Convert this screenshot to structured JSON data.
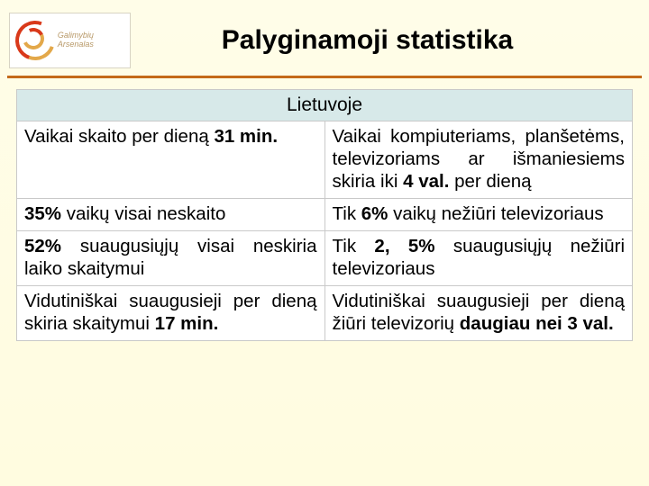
{
  "logo": {
    "text": "Galimybių Arsenalas"
  },
  "title": "Palyginamoji statistika",
  "table": {
    "header": "Lietuvoje",
    "rows": [
      {
        "left_parts": [
          "Vaikai skaito per dieną ",
          "31 min."
        ],
        "right_parts": [
          "Vaikai kompiuteriams, planšetėms, televizoriams ar išmaniesiems skiria iki ",
          "4 val.",
          " per dieną"
        ]
      },
      {
        "left_parts": [
          "35%",
          " vaikų visai neskaito"
        ],
        "right_parts": [
          "Tik ",
          "6%",
          " vaikų nežiūri televizoriaus"
        ]
      },
      {
        "left_parts": [
          "52%",
          " suaugusiųjų visai neskiria laiko skaitymui"
        ],
        "right_parts": [
          "Tik ",
          "2, 5%",
          " suaugusiųjų nežiūri televizoriaus"
        ]
      },
      {
        "left_parts": [
          "Vidutiniškai suaugusieji per dieną skiria skaitymui ",
          "17 min."
        ],
        "right_parts": [
          "Vidutiniškai suaugusieji per dieną žiūri televizorių ",
          "daugiau nei 3 val."
        ]
      }
    ]
  },
  "colors": {
    "background_top": "#fffde8",
    "background_bottom": "#fffce0",
    "rule": "#c46a1a",
    "table_header_bg": "#d7e9e9",
    "cell_border": "#c9c9c9",
    "logo_red": "#d9391a",
    "logo_gold": "#e3a84a"
  }
}
